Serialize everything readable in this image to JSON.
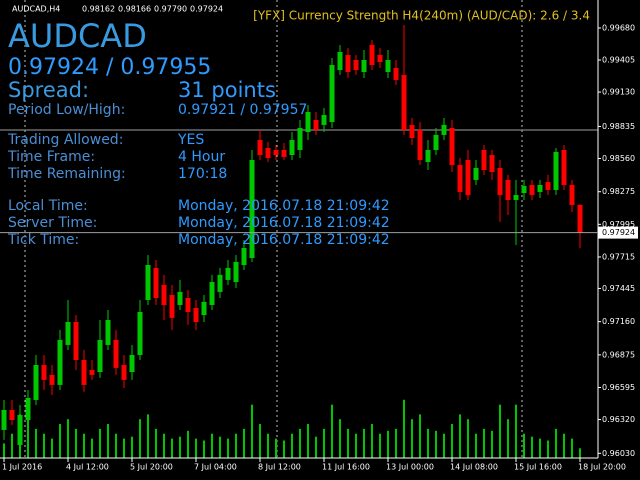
{
  "chart_data": {
    "type": "candlestick",
    "header": {
      "symbol": "AUDCAD,H4",
      "quote": [
        "0.98162",
        "0.98166",
        "0.97790",
        "0.97924"
      ]
    },
    "indicator": "[YFX] Currency Strength H4(240m) (AUD/CAD): 2.6 / 3.4",
    "categories": [
      "1 Jul 2016",
      null,
      null,
      null,
      null,
      null,
      null,
      null,
      "4 Jul 12:00",
      null,
      null,
      null,
      null,
      null,
      null,
      null,
      "5 Jul 20:00",
      null,
      null,
      null,
      null,
      null,
      null,
      null,
      "7 Jul 04:00",
      null,
      null,
      null,
      null,
      null,
      null,
      null,
      "8 Jul 12:00",
      null,
      null,
      null,
      null,
      null,
      null,
      null,
      "11 Jul 16:00",
      null,
      null,
      null,
      null,
      null,
      null,
      null,
      "13 Jul 00:00",
      null,
      null,
      null,
      null,
      null,
      null,
      null,
      "14 Jul 08:00",
      null,
      null,
      null,
      null,
      null,
      null,
      null,
      "15 Jul 16:00",
      null,
      null,
      null,
      null,
      null,
      null,
      null,
      "18 Jul 20:00"
    ],
    "open": [
      0.96231,
      0.96402,
      0.96102,
      0.96316,
      0.96488,
      0.96788,
      0.96703,
      0.96617,
      0.9696,
      0.97157,
      0.96831,
      0.96745,
      0.96728,
      0.9696,
      0.97003,
      0.96788,
      0.96728,
      0.96874,
      0.97346,
      0.97621,
      0.97475,
      0.97389,
      0.97303,
      0.97363,
      0.97277,
      0.97217,
      0.97303,
      0.97415,
      0.97518,
      0.975,
      0.97646,
      0.97706,
      0.98719,
      0.9865,
      0.98633,
      0.98633,
      0.9859,
      0.98633,
      0.98787,
      0.9889,
      0.98848,
      0.98873,
      0.99319,
      0.99448,
      0.99405,
      0.99302,
      0.99534,
      0.99448,
      0.99302,
      0.99337,
      0.99277,
      0.98848,
      0.98805,
      0.9853,
      0.98633,
      0.98762,
      0.98822,
      0.98504,
      0.98547,
      0.98376,
      0.98633,
      0.9859,
      0.98479,
      0.98376,
      0.98204,
      0.98264,
      0.98333,
      0.98273,
      0.98358,
      0.9829,
      0.98633,
      0.98333,
      0.98162
    ],
    "high": [
      0.96488,
      0.96488,
      0.96445,
      0.96574,
      0.96874,
      0.96874,
      0.96788,
      0.97089,
      0.97346,
      0.97217,
      0.96917,
      0.96831,
      0.97174,
      0.9726,
      0.97089,
      0.96874,
      0.9696,
      0.97346,
      0.97732,
      0.97689,
      0.97561,
      0.97475,
      0.97518,
      0.97432,
      0.97346,
      0.97389,
      0.97561,
      0.97621,
      0.97689,
      0.97732,
      0.97861,
      0.98633,
      0.98805,
      0.98702,
      0.98676,
      0.98693,
      0.98787,
      0.9889,
      0.99019,
      0.98959,
      0.98993,
      0.99422,
      0.99534,
      0.99508,
      0.99448,
      0.99491,
      0.99577,
      0.99508,
      0.99491,
      0.99405,
      0.99706,
      0.98908,
      0.98873,
      0.98719,
      0.98822,
      0.98908,
      0.9889,
      0.98564,
      0.98633,
      0.98547,
      0.98676,
      0.98633,
      0.98547,
      0.98419,
      0.98376,
      0.98376,
      0.98376,
      0.98376,
      0.98419,
      0.9865,
      0.98676,
      0.98376,
      0.98166
    ],
    "low": [
      0.96145,
      0.96274,
      0.96059,
      0.96274,
      0.96445,
      0.96574,
      0.96531,
      0.96574,
      0.96917,
      0.96745,
      0.96557,
      0.9666,
      0.96677,
      0.96917,
      0.96703,
      0.96591,
      0.9666,
      0.96831,
      0.97303,
      0.97303,
      0.97174,
      0.97089,
      0.9726,
      0.97132,
      0.97089,
      0.97157,
      0.9726,
      0.97363,
      0.97475,
      0.97449,
      0.97603,
      0.97672,
      0.98547,
      0.9853,
      0.98547,
      0.98547,
      0.98547,
      0.98564,
      0.98719,
      0.98762,
      0.98787,
      0.98822,
      0.99277,
      0.99251,
      0.99277,
      0.99251,
      0.99319,
      0.99337,
      0.99251,
      0.99191,
      0.98762,
      0.98676,
      0.98504,
      0.98461,
      0.9859,
      0.98719,
      0.98444,
      0.98204,
      0.98204,
      0.98333,
      0.98419,
      0.98376,
      0.98015,
      0.98075,
      0.97818,
      0.98204,
      0.98204,
      0.98221,
      0.98247,
      0.98247,
      0.9829,
      0.98101,
      0.9779
    ],
    "close": [
      0.96402,
      0.96316,
      0.96359,
      0.96505,
      0.96788,
      0.9666,
      0.96617,
      0.97003,
      0.97157,
      0.96831,
      0.96617,
      0.96703,
      0.97003,
      0.97174,
      0.96763,
      0.9666,
      0.96874,
      0.97243,
      0.97646,
      0.97363,
      0.97303,
      0.97192,
      0.97415,
      0.97243,
      0.97157,
      0.97329,
      0.975,
      0.97561,
      0.97621,
      0.97672,
      0.97792,
      0.98547,
      0.9859,
      0.98564,
      0.9859,
      0.98573,
      0.98719,
      0.98822,
      0.98959,
      0.98805,
      0.98933,
      0.99362,
      0.99474,
      0.99302,
      0.99319,
      0.99405,
      0.99362,
      0.99388,
      0.99405,
      0.99234,
      0.98805,
      0.98736,
      0.98547,
      0.98633,
      0.98762,
      0.98848,
      0.98504,
      0.98273,
      0.98247,
      0.98479,
      0.98461,
      0.98444,
      0.98247,
      0.98204,
      0.98247,
      0.98324,
      0.98247,
      0.98333,
      0.9829,
      0.98616,
      0.98333,
      0.98161,
      0.97924
    ],
    "volumes": [
      15,
      25,
      45,
      40,
      30,
      25,
      20,
      35,
      40,
      30,
      25,
      20,
      30,
      35,
      25,
      20,
      22,
      40,
      45,
      30,
      25,
      20,
      22,
      28,
      20,
      18,
      25,
      22,
      20,
      25,
      30,
      55,
      35,
      25,
      20,
      18,
      25,
      30,
      35,
      22,
      30,
      55,
      40,
      30,
      25,
      30,
      35,
      25,
      28,
      30,
      60,
      40,
      45,
      30,
      28,
      25,
      35,
      45,
      40,
      25,
      30,
      28,
      55,
      40,
      55,
      25,
      22,
      20,
      18,
      30,
      25,
      20,
      10
    ],
    "up_color": "#00c800",
    "down_color": "#ff0000",
    "volume_color": "#00c800",
    "ylim": [
      0.9599,
      0.9992
    ],
    "yticks": [
      {
        "value": 0.9968,
        "label": "0.99680"
      },
      {
        "value": 0.99405,
        "label": "0.99405"
      },
      {
        "value": 0.9913,
        "label": "0.99130"
      },
      {
        "value": 0.98835,
        "label": "0.98835"
      },
      {
        "value": 0.9856,
        "label": "0.98560"
      },
      {
        "value": 0.98275,
        "label": "0.98275"
      },
      {
        "value": 0.97995,
        "label": "0.97995"
      },
      {
        "value": 0.97715,
        "label": "0.97715"
      },
      {
        "value": 0.97445,
        "label": "0.97445"
      },
      {
        "value": 0.9716,
        "label": "0.97160"
      },
      {
        "value": 0.96875,
        "label": "0.96875"
      },
      {
        "value": 0.96595,
        "label": "0.96595"
      },
      {
        "value": 0.9632,
        "label": "0.96320"
      },
      {
        "value": 0.9603,
        "label": "0.96030"
      }
    ],
    "current_price": {
      "value": 0.97924,
      "label": "0.97924"
    },
    "grid": false
  },
  "info": {
    "symbol": "AUDCAD",
    "quote": "0.97924 / 0.97955",
    "spread": {
      "label": "Spread:",
      "value": "31 points"
    },
    "rows": [
      {
        "label": "Period Low/High:",
        "value": "0.97921 / 0.97957"
      },
      {
        "label": "Trading Allowed:",
        "value": "YES"
      },
      {
        "label": "Time Frame:",
        "value": "4 Hour"
      },
      {
        "label": "Time Remaining:",
        "value": "170:18"
      },
      {
        "label": "Local Time:",
        "value": "Monday, 2016.07.18 21:09:42"
      },
      {
        "label": "Server Time:",
        "value": "Monday, 2016.07.18 21:09:42"
      },
      {
        "label": "Tick Time:",
        "value": "Monday, 2016.07.18 21:09:42"
      }
    ]
  }
}
